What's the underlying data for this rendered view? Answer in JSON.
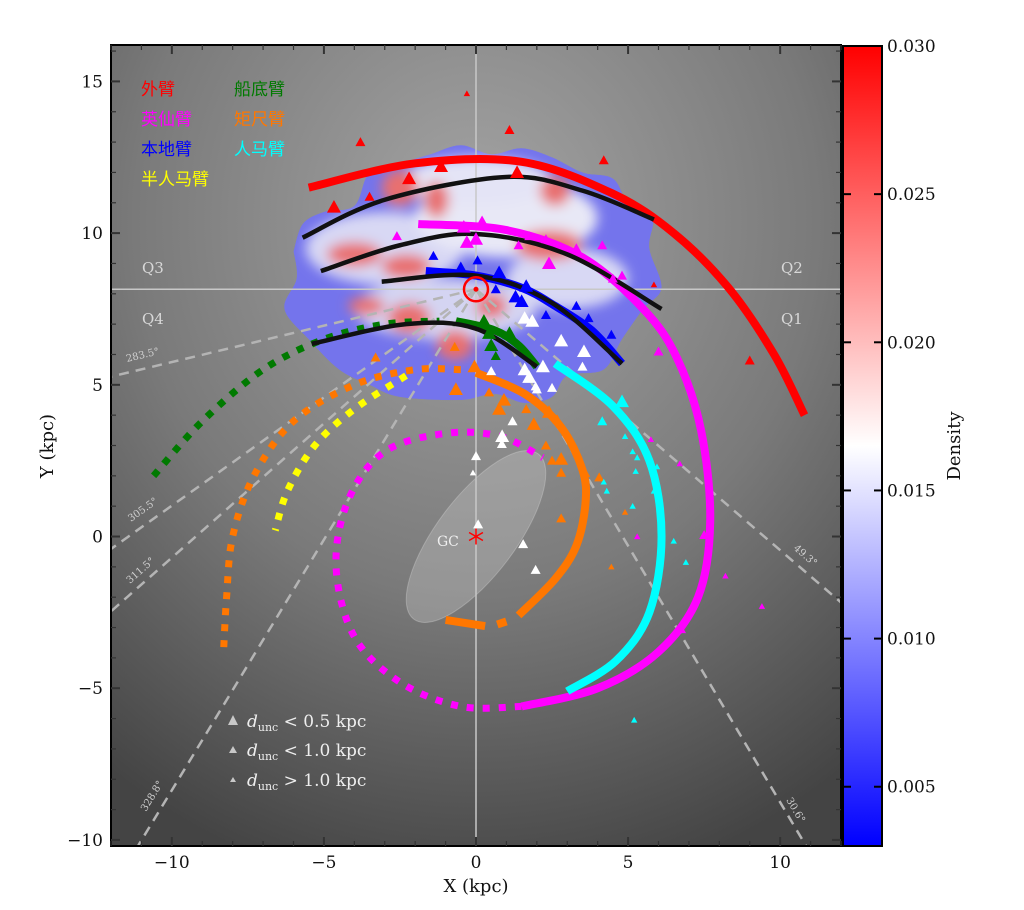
{
  "chart_data": {
    "type": "scatter",
    "xlabel": "X (kpc)",
    "ylabel": "Y (kpc)",
    "xlim": [
      -12,
      12
    ],
    "ylim": [
      -10.2,
      16.2
    ],
    "xticks": [
      -10,
      -5,
      0,
      5,
      10
    ],
    "yticks": [
      -10,
      -5,
      0,
      5,
      10,
      15
    ],
    "grid": false,
    "background": "grey radial gradient",
    "sun": {
      "x": 0,
      "y": 8.15,
      "color": "#ff0000"
    },
    "galactic_center": {
      "x": 0,
      "y": 0,
      "label": "GC",
      "color": "#ff0000"
    },
    "bar": {
      "x": 0,
      "y": 0,
      "semi_major": 3.4,
      "semi_minor": 1.3,
      "angle_deg": 53
    },
    "quadrants": [
      "Q1",
      "Q2",
      "Q3",
      "Q4"
    ],
    "longitude_lines": [
      {
        "l": 283.5,
        "label": "283.5°"
      },
      {
        "l": 305.5,
        "label": "305.5°"
      },
      {
        "l": 311.5,
        "label": "311.5°"
      },
      {
        "l": 328.8,
        "label": "328.8°"
      },
      {
        "l": 49.3,
        "label": "49.3°"
      },
      {
        "l": 30.6,
        "label": "30.6°"
      }
    ],
    "arm_legend": [
      {
        "label": "外臂",
        "color": "#ff0000"
      },
      {
        "label": "船底臂",
        "color": "#007a00"
      },
      {
        "label": "英仙臂",
        "color": "#ff00ff"
      },
      {
        "label": "矩尺臂",
        "color": "#ff7700"
      },
      {
        "label": "本地臂",
        "color": "#0000ff"
      },
      {
        "label": "人马臂",
        "color": "#00ffff"
      },
      {
        "label": "半人马臂",
        "color": "#ffff00"
      }
    ],
    "arms": [
      {
        "arm": "外臂",
        "color": "#ff0000",
        "style": "solid",
        "points": [
          [
            -5.5,
            11.5
          ],
          [
            -2,
            12.3
          ],
          [
            1.5,
            12.35
          ],
          [
            4.5,
            11.3
          ],
          [
            6.5,
            10
          ],
          [
            8.3,
            8.2
          ],
          [
            9.8,
            6
          ],
          [
            10.8,
            4
          ]
        ]
      },
      {
        "arm": "英仙臂",
        "color": "#ff00ff",
        "style": "solid",
        "points": [
          [
            -1.9,
            10.3
          ],
          [
            1,
            10.1
          ],
          [
            3.5,
            9.2
          ],
          [
            5.5,
            7.5
          ],
          [
            6.6,
            5.9
          ],
          [
            7.4,
            3.5
          ],
          [
            7.7,
            0.5
          ],
          [
            7.3,
            -2
          ],
          [
            6,
            -3.8
          ],
          [
            4,
            -5
          ],
          [
            1.5,
            -5.6
          ]
        ]
      },
      {
        "arm": "英仙臂",
        "color": "#ff00ff",
        "style": "dashed",
        "points": [
          [
            1.5,
            -5.6
          ],
          [
            -0.5,
            -5.6
          ],
          [
            -2.5,
            -4.8
          ],
          [
            -4,
            -3.3
          ],
          [
            -4.6,
            -1
          ],
          [
            -4.2,
            1.2
          ],
          [
            -3,
            2.8
          ],
          [
            -1,
            3.4
          ],
          [
            0.8,
            3.3
          ],
          [
            2.2,
            2.6
          ]
        ]
      },
      {
        "arm": "本地臂",
        "color": "#0000ff",
        "style": "solid",
        "points": [
          [
            -1.65,
            8.75
          ],
          [
            0,
            8.6
          ],
          [
            1.5,
            8.2
          ],
          [
            2.6,
            7.6
          ],
          [
            3.8,
            6.8
          ],
          [
            4.8,
            5.7
          ]
        ]
      },
      {
        "arm": "船底臂",
        "color": "#007a00",
        "style": "dashed",
        "points": [
          [
            -10.6,
            2
          ],
          [
            -9,
            3.8
          ],
          [
            -7,
            5.5
          ],
          [
            -5,
            6.5
          ],
          [
            -3,
            7
          ],
          [
            -1.2,
            7.1
          ]
        ]
      },
      {
        "arm": "船底臂",
        "color": "#007a00",
        "style": "solid",
        "points": [
          [
            -0.66,
            7.1
          ],
          [
            0.6,
            6.8
          ],
          [
            1.4,
            6.3
          ],
          [
            2.0,
            5.6
          ]
        ]
      },
      {
        "arm": "矩尺臂",
        "color": "#ff7700",
        "style": "dashed",
        "points": [
          [
            -0.5,
            5.5
          ],
          [
            -2,
            5.5
          ],
          [
            -4,
            5
          ],
          [
            -6,
            3.8
          ],
          [
            -7.3,
            2
          ],
          [
            -8,
            0
          ],
          [
            -8.2,
            -2
          ],
          [
            -8.3,
            -3.8
          ]
        ]
      },
      {
        "arm": "矩尺臂",
        "color": "#ff7700",
        "style": "solid",
        "points": [
          [
            0,
            5.4
          ],
          [
            1.6,
            4.7
          ],
          [
            2.8,
            3.6
          ],
          [
            3.5,
            2.2
          ],
          [
            3.6,
            1.1
          ],
          [
            3.3,
            -0.3
          ],
          [
            2.6,
            -1.4
          ],
          [
            1.4,
            -2.6
          ]
        ]
      },
      {
        "arm": "矩尺臂",
        "color": "#ff7700",
        "style": "solid",
        "points": [
          [
            -1,
            -2.75
          ],
          [
            0.3,
            -2.95
          ]
        ]
      },
      {
        "arm": "矩尺臂",
        "color": "#ff7700",
        "style": "solid",
        "points": [
          [
            0.7,
            -2.9
          ],
          [
            1.0,
            -2.8
          ]
        ]
      },
      {
        "arm": "人马臂",
        "color": "#00ffff",
        "style": "solid",
        "points": [
          [
            2.6,
            5.7
          ],
          [
            4.5,
            4.3
          ],
          [
            5.7,
            2.5
          ],
          [
            6.1,
            0
          ],
          [
            5.7,
            -2.5
          ],
          [
            4.6,
            -4.1
          ],
          [
            3,
            -5.1
          ]
        ]
      },
      {
        "arm": "半人马臂",
        "color": "#ffff00",
        "style": "dashed",
        "points": [
          [
            -2.3,
            5.3
          ],
          [
            -4,
            4.2
          ],
          [
            -5.3,
            3
          ],
          [
            -6.2,
            1.5
          ],
          [
            -6.6,
            0.2
          ]
        ]
      },
      {
        "arm": "model",
        "color": "#111111",
        "style": "solid",
        "points": [
          [
            -5.7,
            9.85
          ],
          [
            -3,
            11.1
          ],
          [
            1,
            11.85
          ],
          [
            3.5,
            11.4
          ],
          [
            5.85,
            10.45
          ]
        ]
      },
      {
        "arm": "model",
        "color": "#111111",
        "style": "solid",
        "points": [
          [
            -5.1,
            8.75
          ],
          [
            -2.5,
            9.6
          ],
          [
            0,
            9.97
          ],
          [
            3,
            9.3
          ],
          [
            6.1,
            7.5
          ]
        ]
      },
      {
        "arm": "model",
        "color": "#111111",
        "style": "solid",
        "points": [
          [
            -3.1,
            8.4
          ],
          [
            0,
            8.6
          ],
          [
            2.5,
            7.7
          ],
          [
            4.8,
            5.7
          ]
        ]
      },
      {
        "arm": "model",
        "color": "#111111",
        "style": "solid",
        "points": [
          [
            -5.4,
            6.35
          ],
          [
            -2.3,
            7.0
          ],
          [
            0,
            6.85
          ],
          [
            2.0,
            5.6
          ]
        ]
      }
    ],
    "density_colorbar": {
      "label": "Density",
      "range": [
        0.003,
        0.03
      ],
      "ticks": [
        "0.005",
        "0.010",
        "0.015",
        "0.020",
        "0.025",
        "0.030"
      ],
      "tick_values": [
        0.005,
        0.01,
        0.015,
        0.02,
        0.025,
        0.03
      ],
      "colors": [
        "#0000ff",
        "#ffffff",
        "#ff0000"
      ]
    },
    "marker_legend": [
      {
        "label_var": "d",
        "label_sub": "unc",
        "label_rest": " < 0.5 kpc",
        "size": 0
      },
      {
        "label_var": "d",
        "label_sub": "unc",
        "label_rest": " < 1.0 kpc",
        "size": 1
      },
      {
        "label_var": "d",
        "label_sub": "unc",
        "label_rest": " > 1.0 kpc",
        "size": 2
      }
    ],
    "markers": [
      {
        "color": "#ff0000",
        "points": [
          [
            -4.67,
            10.86,
            0
          ],
          [
            -3.5,
            11.2,
            1
          ],
          [
            -2.2,
            11.8,
            0
          ],
          [
            -1.15,
            12.2,
            0
          ],
          [
            1.35,
            12.0,
            0
          ],
          [
            4.2,
            12.4,
            1
          ],
          [
            1.1,
            13.4,
            1
          ],
          [
            -3.8,
            13.0,
            1
          ],
          [
            5.85,
            8.3,
            2
          ],
          [
            -0.3,
            14.6,
            2
          ],
          [
            9.0,
            5.8,
            1
          ]
        ]
      },
      {
        "color": "#ff00ff",
        "points": [
          [
            -2.6,
            9.9,
            1
          ],
          [
            -0.4,
            10.2,
            0
          ],
          [
            0.2,
            10.35,
            0
          ],
          [
            -0.3,
            9.7,
            0
          ],
          [
            0,
            9.8,
            0
          ],
          [
            1.4,
            9.6,
            1
          ],
          [
            1.75,
            9.9,
            1
          ],
          [
            2.3,
            9.8,
            1
          ],
          [
            2.4,
            9.0,
            0
          ],
          [
            3.3,
            9.5,
            1
          ],
          [
            4.15,
            9.6,
            1
          ],
          [
            4.8,
            8.6,
            1
          ],
          [
            4.5,
            8.5,
            1
          ],
          [
            6.0,
            6.1,
            1
          ],
          [
            7.5,
            0.05,
            1
          ],
          [
            8.2,
            -1.3,
            2
          ],
          [
            9.4,
            -2.3,
            2
          ],
          [
            6.7,
            2.4,
            2
          ],
          [
            5.3,
            0,
            2
          ],
          [
            5.75,
            3.2,
            2
          ],
          [
            6.8,
            -3.1,
            2
          ]
        ]
      },
      {
        "color": "#0000ff",
        "points": [
          [
            -1.4,
            9.25,
            1
          ],
          [
            -0.5,
            8.9,
            1
          ],
          [
            0.05,
            9.1,
            1
          ],
          [
            0.76,
            8.7,
            0
          ],
          [
            1.65,
            8.25,
            0
          ],
          [
            1.3,
            7.9,
            0
          ],
          [
            1.5,
            7.75,
            0
          ],
          [
            0.65,
            8.15,
            1
          ],
          [
            2.3,
            7.3,
            1
          ],
          [
            3.3,
            7.6,
            1
          ],
          [
            3.7,
            7.2,
            1
          ],
          [
            4.45,
            6.65,
            1
          ]
        ]
      },
      {
        "color": "#007a00",
        "points": [
          [
            0.26,
            7.1,
            0
          ],
          [
            0.43,
            6.7,
            0
          ],
          [
            1.1,
            6.7,
            0
          ],
          [
            0.5,
            6.3,
            0
          ],
          [
            0.65,
            5.95,
            1
          ]
        ]
      },
      {
        "color": "#ffffff",
        "points": [
          [
            1.6,
            7.2,
            0
          ],
          [
            1.85,
            7.1,
            0
          ],
          [
            2.8,
            6.45,
            0
          ],
          [
            3.55,
            6.1,
            0
          ],
          [
            3.5,
            5.6,
            1
          ],
          [
            2.2,
            5.6,
            0
          ],
          [
            1.6,
            5.5,
            0
          ],
          [
            1.75,
            5.25,
            0
          ],
          [
            1.96,
            4.95,
            1
          ],
          [
            2.5,
            4.9,
            1
          ],
          [
            0.5,
            5.45,
            1
          ],
          [
            1.2,
            3.8,
            1
          ],
          [
            0.86,
            3.3,
            0
          ],
          [
            0.85,
            3.05,
            1
          ],
          [
            0,
            2.65,
            1
          ],
          [
            -0.1,
            2.1,
            2
          ],
          [
            0.07,
            0.4,
            1
          ],
          [
            1.55,
            -0.25,
            1
          ],
          [
            1.96,
            -1.1,
            1
          ],
          [
            2.0,
            4.85,
            1
          ]
        ]
      },
      {
        "color": "#ff7700",
        "points": [
          [
            -0.66,
            4.85,
            0
          ],
          [
            0.43,
            4.75,
            1
          ],
          [
            0.76,
            4.2,
            0
          ],
          [
            0.92,
            4.5,
            0
          ],
          [
            1.65,
            4.2,
            1
          ],
          [
            1.9,
            3.7,
            0
          ],
          [
            2.4,
            4.1,
            0
          ],
          [
            2.67,
            3.86,
            1
          ],
          [
            2.3,
            3.0,
            1
          ],
          [
            2.5,
            2.5,
            1
          ],
          [
            2.8,
            2.55,
            0
          ],
          [
            2.8,
            2.1,
            1
          ],
          [
            3.65,
            2.05,
            2
          ],
          [
            4.05,
            1.95,
            1
          ],
          [
            2.8,
            0.6,
            1
          ],
          [
            4.9,
            0.8,
            2
          ],
          [
            4.45,
            -1.0,
            2
          ],
          [
            -0.7,
            6.25,
            1
          ],
          [
            -3.3,
            5.9,
            1
          ],
          [
            -0.05,
            5.6,
            0
          ]
        ]
      },
      {
        "color": "#00ffff",
        "points": [
          [
            4.8,
            4.45,
            0
          ],
          [
            4.15,
            3.8,
            1
          ],
          [
            4.9,
            3.3,
            2
          ],
          [
            5.15,
            2.8,
            2
          ],
          [
            5.3,
            2.6,
            2
          ],
          [
            5.25,
            2.15,
            2
          ],
          [
            5.95,
            2.3,
            2
          ],
          [
            4.2,
            1.8,
            2
          ],
          [
            4.3,
            1.5,
            2
          ],
          [
            5.15,
            1.0,
            2
          ],
          [
            6.5,
            -0.15,
            2
          ],
          [
            6.9,
            -0.85,
            2
          ],
          [
            5.85,
            1.5,
            2
          ],
          [
            4.45,
            -4.2,
            2
          ],
          [
            5.2,
            -6.05,
            2
          ]
        ]
      }
    ]
  }
}
